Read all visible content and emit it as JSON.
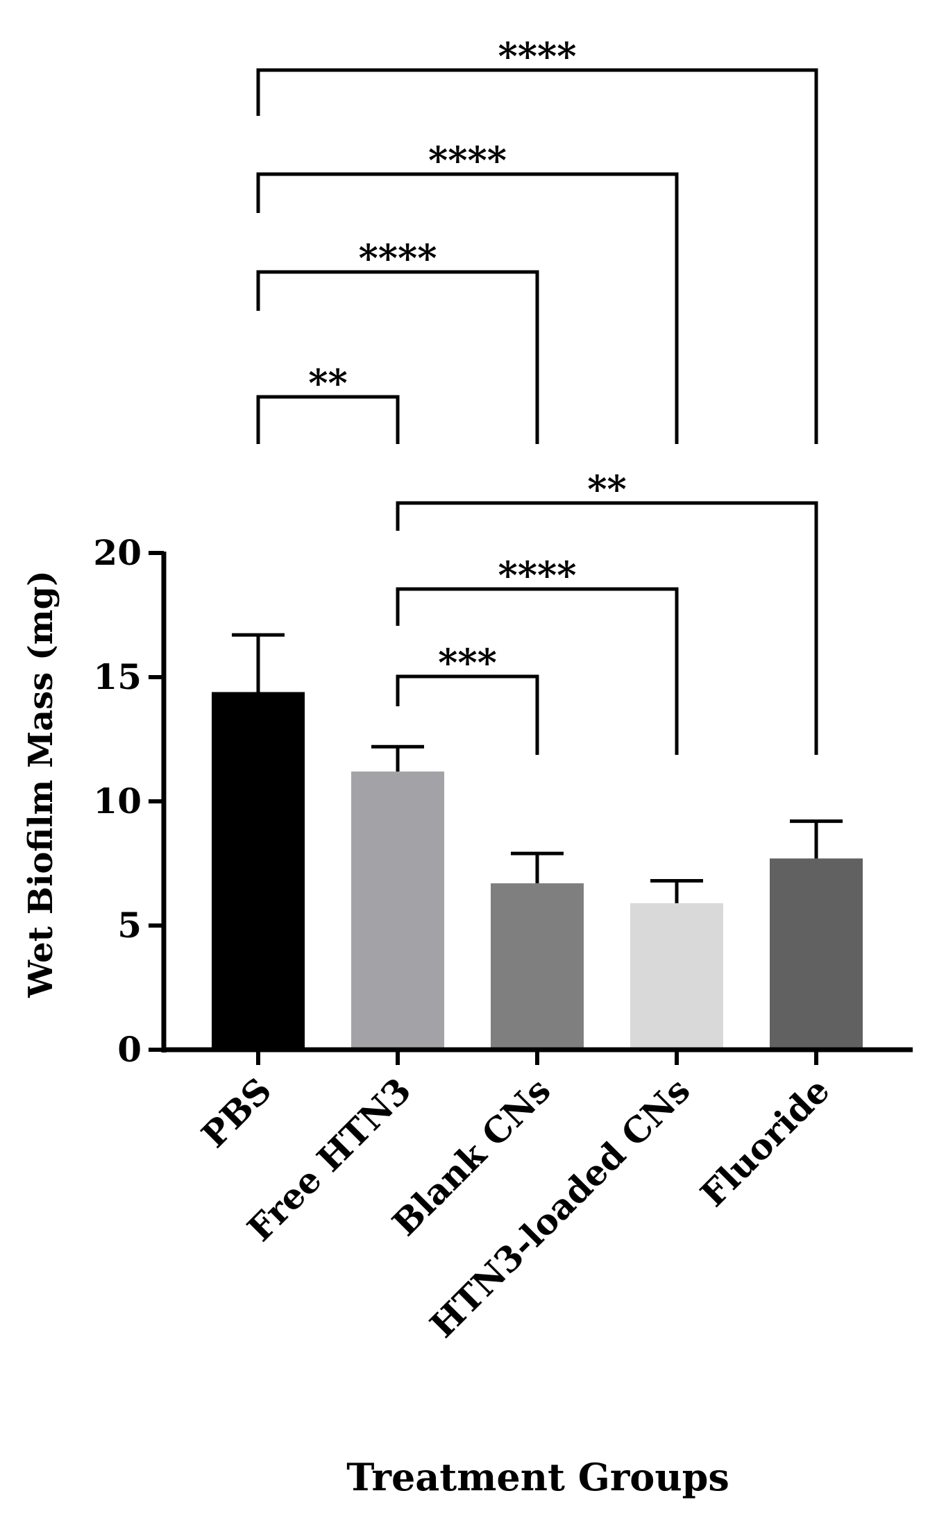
{
  "chart_data": {
    "type": "bar",
    "title": "",
    "xlabel": "Treatment Groups",
    "ylabel": "Wet Biofilm Mass (mg)",
    "ylim": [
      0,
      20
    ],
    "yticks": [
      0,
      5,
      10,
      15,
      20
    ],
    "categories": [
      "PBS",
      "Free HTN3",
      "Blank CNs",
      "HTN3-loaded CNs",
      "Fluoride"
    ],
    "values": [
      14.4,
      11.2,
      6.7,
      5.9,
      7.7
    ],
    "errors": [
      2.3,
      1.0,
      1.2,
      0.9,
      1.5
    ],
    "colors": [
      "#000000",
      "#a3a3a7",
      "#7f7f7f",
      "#d9d9d9",
      "#616161"
    ],
    "comparisons": [
      {
        "group1": "PBS",
        "group2": "Free HTN3",
        "label": "**"
      },
      {
        "group1": "PBS",
        "group2": "Blank CNs",
        "label": "****"
      },
      {
        "group1": "PBS",
        "group2": "HTN3-loaded CNs",
        "label": "****"
      },
      {
        "group1": "PBS",
        "group2": "Fluoride",
        "label": "****"
      },
      {
        "group1": "Free HTN3",
        "group2": "Blank CNs",
        "label": "***"
      },
      {
        "group1": "Free HTN3",
        "group2": "HTN3-loaded CNs",
        "label": "****"
      },
      {
        "group1": "Free HTN3",
        "group2": "Fluoride",
        "label": "**"
      }
    ]
  }
}
